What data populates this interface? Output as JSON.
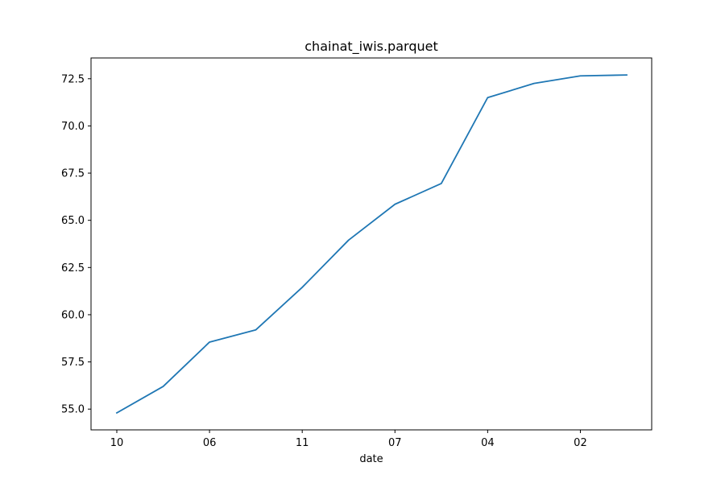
{
  "chart_data": {
    "type": "line",
    "title": "chainat_iwis.parquet",
    "xlabel": "date",
    "ylabel": "",
    "x_tick_labels": [
      "10",
      "06",
      "11",
      "07",
      "04",
      "02"
    ],
    "y_tick_labels": [
      "55.0",
      "57.5",
      "60.0",
      "62.5",
      "65.0",
      "67.5",
      "70.0",
      "72.5"
    ],
    "ylim": [
      53.9,
      73.6
    ],
    "grid": false,
    "series": [
      {
        "color": "#1f77b4",
        "values": [
          54.8,
          56.2,
          58.55,
          59.2,
          61.45,
          63.95,
          65.85,
          66.95,
          71.5,
          72.25,
          72.65,
          72.7
        ]
      }
    ]
  }
}
